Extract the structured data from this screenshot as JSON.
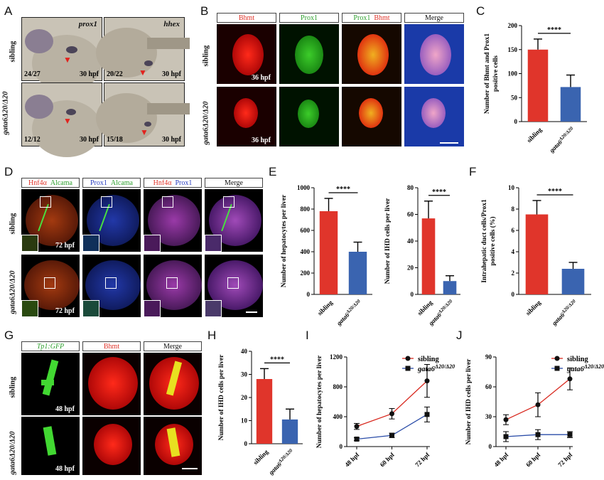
{
  "panels": {
    "A": {
      "label": "A",
      "col_titles": [
        "prox1",
        "hhex"
      ],
      "rows": [
        "sibling",
        "gata6Δ20/Δ20"
      ],
      "counts": [
        "24/27",
        "20/22",
        "12/12",
        "15/18"
      ],
      "stage": "30 hpf"
    },
    "B": {
      "label": "B",
      "headers": [
        "Bhmt",
        "Prox1",
        "Prox1",
        "Bhmt",
        "Merge"
      ],
      "rows": [
        "sibling",
        "gata6Δ20/Δ20"
      ],
      "stage": "36 hpf"
    },
    "C": {
      "label": "C"
    },
    "D": {
      "label": "D",
      "headers": [
        [
          "Hnf4α",
          "Alcama"
        ],
        [
          "Prox1",
          "Alcama"
        ],
        [
          "Hnf4α",
          "Prox1"
        ],
        [
          "Merge"
        ]
      ],
      "rows": [
        "sibling",
        "gata6Δ20/Δ20"
      ],
      "stage": "72 hpf"
    },
    "E": {
      "label": "E"
    },
    "F": {
      "label": "F"
    },
    "G": {
      "label": "G",
      "headers": [
        "Tp1:GFP",
        "Bhmt",
        "Merge"
      ],
      "rows": [
        "sibling",
        "gata6Δ20/Δ20"
      ],
      "stage": "48 hpf"
    },
    "H": {
      "label": "H"
    },
    "I": {
      "label": "I"
    },
    "J": {
      "label": "J"
    }
  },
  "colors": {
    "sibling": "#e0352b",
    "mutant": "#3a64b0"
  },
  "chart_data": [
    {
      "id": "C",
      "type": "bar",
      "categories": [
        "sibling",
        "gata6Δ20/Δ20"
      ],
      "values": [
        150,
        72
      ],
      "errors": [
        22,
        25
      ],
      "ylabel": "Number of Bhmt and Prox1 positive cells",
      "ylim": [
        0,
        200
      ],
      "yticks": [
        0,
        50,
        100,
        150,
        200
      ],
      "significance": "****"
    },
    {
      "id": "E1",
      "type": "bar",
      "categories": [
        "sibling",
        "gata6Δ20/Δ20"
      ],
      "values": [
        780,
        400
      ],
      "errors": [
        120,
        90
      ],
      "ylabel": "Number of hepatocytes per liver",
      "ylim": [
        0,
        1000
      ],
      "yticks": [
        0,
        200,
        400,
        600,
        800,
        1000
      ],
      "significance": "****"
    },
    {
      "id": "E2",
      "type": "bar",
      "categories": [
        "sibling",
        "gata6Δ20/Δ20"
      ],
      "values": [
        57,
        10
      ],
      "errors": [
        13,
        4
      ],
      "ylabel": "Number of IHD cells per liver",
      "ylim": [
        0,
        80
      ],
      "yticks": [
        0,
        20,
        40,
        60,
        80
      ],
      "significance": "****"
    },
    {
      "id": "F",
      "type": "bar",
      "categories": [
        "sibling",
        "gata6Δ20/Δ20"
      ],
      "values": [
        7.5,
        2.4
      ],
      "errors": [
        1.3,
        0.6
      ],
      "ylabel": "Intrahepatic duct cells/Prox1 positive cells (%)",
      "ylim": [
        0,
        10
      ],
      "yticks": [
        0,
        2,
        4,
        6,
        8,
        10
      ],
      "significance": "****"
    },
    {
      "id": "H",
      "type": "bar",
      "categories": [
        "sibling",
        "gata6Δ20/Δ20"
      ],
      "values": [
        28,
        10.5
      ],
      "errors": [
        4.5,
        4.5
      ],
      "ylabel": "Number of IHD cells per liver",
      "ylim": [
        0,
        40
      ],
      "yticks": [
        0,
        10,
        20,
        30,
        40
      ],
      "significance": "****"
    },
    {
      "id": "I",
      "type": "line",
      "x": [
        "48 hpf",
        "60 hpf",
        "72 hpf"
      ],
      "series": [
        {
          "name": "sibling",
          "values": [
            270,
            440,
            880
          ],
          "errors": [
            40,
            70,
            220
          ]
        },
        {
          "name": "gata6Δ20/Δ20",
          "values": [
            100,
            150,
            430
          ],
          "errors": [
            20,
            30,
            100
          ]
        }
      ],
      "ylabel": "Number of hepatocytes per liver",
      "ylim": [
        0,
        1200
      ],
      "yticks": [
        0,
        400,
        800,
        1200
      ],
      "legend": "top-right"
    },
    {
      "id": "J",
      "type": "line",
      "x": [
        "48 hpf",
        "60 hpf",
        "72 hpf"
      ],
      "series": [
        {
          "name": "sibling",
          "values": [
            27,
            42,
            68
          ],
          "errors": [
            5,
            12,
            11
          ]
        },
        {
          "name": "gata6Δ20/Δ20",
          "values": [
            10,
            12,
            12
          ],
          "errors": [
            5,
            5,
            3
          ]
        }
      ],
      "ylabel": "Number of IHD cells per liver",
      "ylim": [
        0,
        90
      ],
      "yticks": [
        0,
        30,
        60,
        90
      ],
      "legend": "top-right"
    }
  ]
}
